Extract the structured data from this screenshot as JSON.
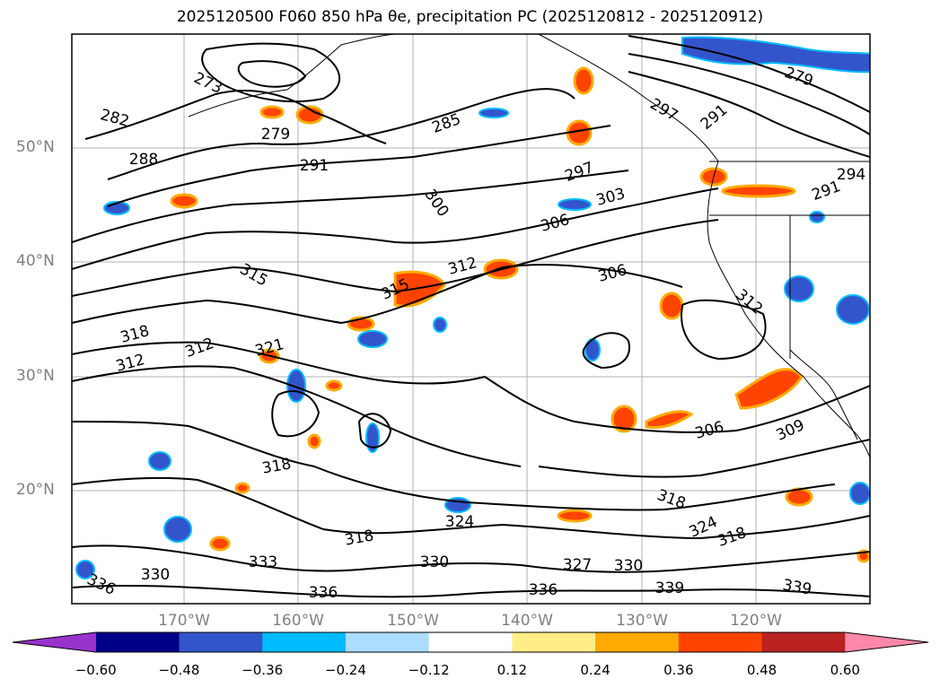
{
  "title": "2025120500 F060 850 hPa θe, precipitation PC (2025120812 - 2025120912)",
  "lat_labels": [
    "50°N",
    "40°N",
    "30°N",
    "20°N"
  ],
  "lon_labels": [
    "170°W",
    "160°W",
    "150°W",
    "140°W",
    "130°W",
    "120°W"
  ],
  "colorbar": {
    "ticks": [
      "−0.60",
      "−0.48",
      "−0.36",
      "−0.24",
      "−0.12",
      "0.12",
      "0.24",
      "0.36",
      "0.48",
      "0.60"
    ],
    "colors": [
      "#9933cc",
      "#000088",
      "#3355cc",
      "#00bbff",
      "#aaddff",
      "#ffffff",
      "#ffee88",
      "#ffaa00",
      "#ff4400",
      "#bb2222",
      "#ff88aa"
    ]
  },
  "contour_labels": [
    "273",
    "282",
    "279",
    "285",
    "288",
    "291",
    "297",
    "300",
    "303",
    "306",
    "306",
    "312",
    "315",
    "315",
    "318",
    "312",
    "312",
    "321",
    "318",
    "324",
    "318",
    "336",
    "330",
    "333",
    "336",
    "330",
    "327",
    "330",
    "336",
    "339",
    "339",
    "324",
    "318",
    "306",
    "309",
    "318",
    "291",
    "294",
    "297",
    "291",
    "279",
    "312"
  ]
}
